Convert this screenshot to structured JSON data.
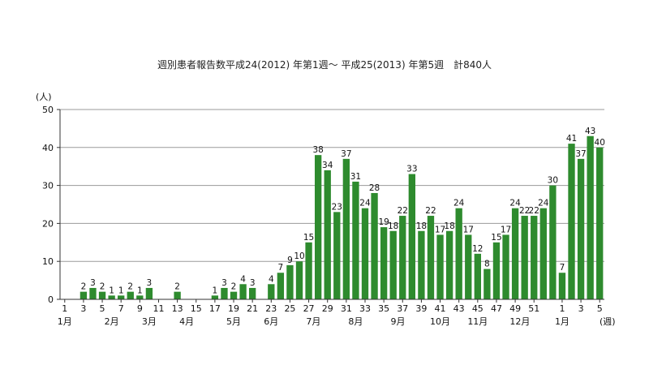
{
  "chart_data": {
    "type": "bar",
    "title": "週別患者報告数平成24(2012) 年第1週〜 平成25(2013) 年第5週　計840人",
    "y_unit_label": "(人)",
    "x_unit_label": "(週)",
    "ylim": [
      0,
      50
    ],
    "yticks": [
      0,
      10,
      20,
      30,
      40,
      50
    ],
    "grid": true,
    "bar_color": "#2e8b2e",
    "values": [
      0,
      0,
      2,
      3,
      2,
      1,
      1,
      2,
      1,
      3,
      0,
      0,
      2,
      0,
      0,
      0,
      1,
      3,
      2,
      4,
      3,
      0,
      4,
      7,
      9,
      10,
      15,
      38,
      34,
      23,
      37,
      31,
      24,
      28,
      19,
      18,
      22,
      33,
      18,
      22,
      17,
      18,
      24,
      17,
      12,
      8,
      15,
      17,
      24,
      22,
      22,
      24,
      30,
      7,
      41,
      37,
      43,
      40
    ],
    "x_tick_labels": [
      {
        "i": 0,
        "text": "1"
      },
      {
        "i": 2,
        "text": "3"
      },
      {
        "i": 4,
        "text": "5"
      },
      {
        "i": 6,
        "text": "7"
      },
      {
        "i": 8,
        "text": "9"
      },
      {
        "i": 10,
        "text": "11"
      },
      {
        "i": 12,
        "text": "13"
      },
      {
        "i": 14,
        "text": "15"
      },
      {
        "i": 16,
        "text": "17"
      },
      {
        "i": 18,
        "text": "19"
      },
      {
        "i": 20,
        "text": "21"
      },
      {
        "i": 22,
        "text": "23"
      },
      {
        "i": 24,
        "text": "25"
      },
      {
        "i": 26,
        "text": "27"
      },
      {
        "i": 28,
        "text": "29"
      },
      {
        "i": 30,
        "text": "31"
      },
      {
        "i": 32,
        "text": "33"
      },
      {
        "i": 34,
        "text": "35"
      },
      {
        "i": 36,
        "text": "37"
      },
      {
        "i": 38,
        "text": "39"
      },
      {
        "i": 40,
        "text": "41"
      },
      {
        "i": 42,
        "text": "43"
      },
      {
        "i": 44,
        "text": "45"
      },
      {
        "i": 46,
        "text": "47"
      },
      {
        "i": 48,
        "text": "49"
      },
      {
        "i": 50,
        "text": "51"
      },
      {
        "i": 53,
        "text": "1"
      },
      {
        "i": 55,
        "text": "3"
      },
      {
        "i": 57,
        "text": "5"
      }
    ],
    "month_labels": [
      {
        "i": 0,
        "text": "1月"
      },
      {
        "i": 5,
        "text": "2月"
      },
      {
        "i": 9,
        "text": "3月"
      },
      {
        "i": 13,
        "text": "4月"
      },
      {
        "i": 18,
        "text": "5月"
      },
      {
        "i": 22,
        "text": "6月"
      },
      {
        "i": 26.5,
        "text": "7月"
      },
      {
        "i": 31,
        "text": "8月"
      },
      {
        "i": 35.5,
        "text": "9月"
      },
      {
        "i": 40,
        "text": "10月"
      },
      {
        "i": 44,
        "text": "11月"
      },
      {
        "i": 48.5,
        "text": "12月"
      },
      {
        "i": 53,
        "text": "1月"
      }
    ]
  }
}
